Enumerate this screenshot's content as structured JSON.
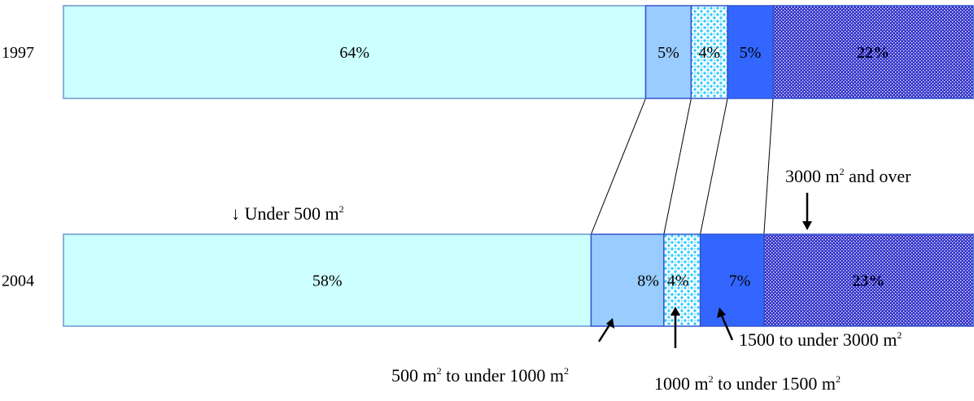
{
  "chart_data": {
    "type": "bar",
    "orientation": "horizontal",
    "stacked": true,
    "percent": true,
    "categories": [
      "1997",
      "2004"
    ],
    "series": [
      {
        "name": "Under 500 m²",
        "values": [
          64,
          58
        ],
        "labels": [
          "64%",
          "58%"
        ],
        "color": "#ccffff",
        "pattern": "solid"
      },
      {
        "name": "500 m² to under 1000 m²",
        "values": [
          5,
          8
        ],
        "labels": [
          "5%",
          "8%"
        ],
        "color": "#99ccff",
        "pattern": "solid"
      },
      {
        "name": "1000 m² to under 1500 m²",
        "values": [
          4,
          4
        ],
        "labels": [
          "4%",
          "4%"
        ],
        "color": "#33ccff",
        "pattern": "dots"
      },
      {
        "name": "1500 to under 3000 m²",
        "values": [
          5,
          7
        ],
        "labels": [
          "5%",
          "7%"
        ],
        "color": "#3366ff",
        "pattern": "solid"
      },
      {
        "name": "3000 m² and over",
        "values": [
          22,
          23
        ],
        "labels": [
          "22%",
          "23%"
        ],
        "color": "#3333cc",
        "pattern": "fine-dots"
      }
    ],
    "connector_lines": true
  },
  "annotations": {
    "under500": {
      "arrow": "↓",
      "pre": "Under 500 m",
      "sup": "2",
      "post": ""
    },
    "over3000": {
      "pre": "3000 m",
      "sup": "2",
      "post": " and over"
    },
    "r500_1000": {
      "pre": "500 m",
      "sup": "2",
      "mid": " to under 1000 m",
      "sup2": "2"
    },
    "r1000_1500": {
      "pre": "1000 m",
      "sup": "2",
      "mid": " to under 1500 m",
      "sup2": "2"
    },
    "r1500_3000": {
      "pre": "1500 to under 3000 m",
      "sup": "2"
    }
  }
}
